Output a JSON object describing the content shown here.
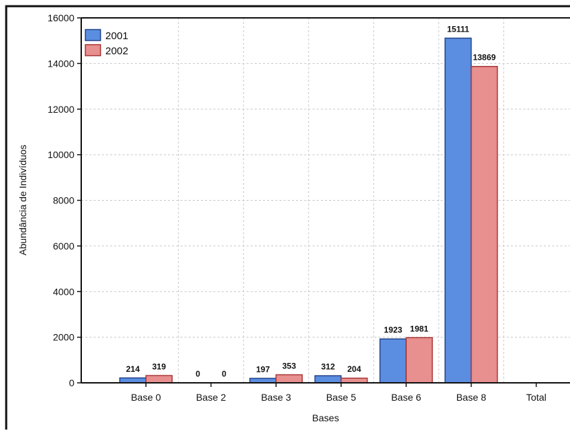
{
  "chart_data": {
    "type": "bar",
    "title": "",
    "xlabel": "Bases",
    "ylabel": "Abundância de Indivíduos",
    "categories": [
      "Base 0",
      "Base 2",
      "Base 3",
      "Base 5",
      "Base 6",
      "Base 8",
      "Total"
    ],
    "series": [
      {
        "name": "2001",
        "values": [
          214,
          0,
          197,
          312,
          1923,
          15111,
          null
        ],
        "color": "#5b8ee0"
      },
      {
        "name": "2002",
        "values": [
          319,
          0,
          353,
          204,
          1981,
          13869,
          null
        ],
        "color": "#e88f8f"
      }
    ],
    "data_labels": {
      "2001": [
        "214",
        "0",
        "197",
        "312",
        "1923",
        "15111",
        ""
      ],
      "2002": [
        "319",
        "0",
        "353",
        "204",
        "1981",
        "13869",
        ""
      ]
    },
    "ylim": [
      0,
      16000
    ],
    "yticks": [
      "0",
      "2000",
      "4000",
      "6000",
      "8000",
      "10000",
      "12000",
      "14000",
      "16000"
    ],
    "grid": true,
    "legend_position": "top-left",
    "colors": {
      "series_2001": "#5b8ee0",
      "series_2002": "#e88f8f",
      "border_2001": "#24448a",
      "border_2002": "#a83434",
      "grid": "#c8c8c8"
    }
  }
}
